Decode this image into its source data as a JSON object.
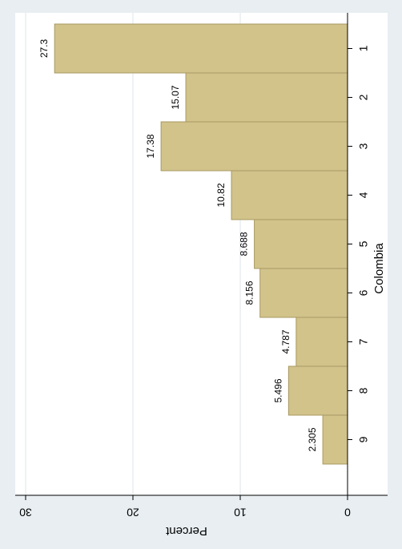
{
  "colors": {
    "outer_bg": "#e8eef2",
    "plot_bg": "#ffffff",
    "bar_fill": "#d1c38a",
    "bar_stroke": "#a89a62",
    "grid": "#dfe5e9",
    "axis": "#000000",
    "text": "#000000"
  },
  "chart_data": {
    "type": "bar",
    "orientation": "rotated-90",
    "categories": [
      "1",
      "2",
      "3",
      "4",
      "5",
      "6",
      "7",
      "8",
      "9"
    ],
    "values": [
      27.3,
      15.07,
      17.38,
      10.82,
      8.688,
      8.156,
      4.787,
      5.496,
      2.305
    ],
    "value_labels": [
      "27.3",
      "15.07",
      "17.38",
      "10.82",
      "8.688",
      "8.156",
      "4.787",
      "5.496",
      "2.305"
    ],
    "xlabel": "Colombia",
    "ylabel": "Percent",
    "ylim": [
      0,
      30
    ],
    "yticks": [
      "0",
      "10",
      "20",
      "30"
    ],
    "grid": true,
    "legend": "none"
  }
}
